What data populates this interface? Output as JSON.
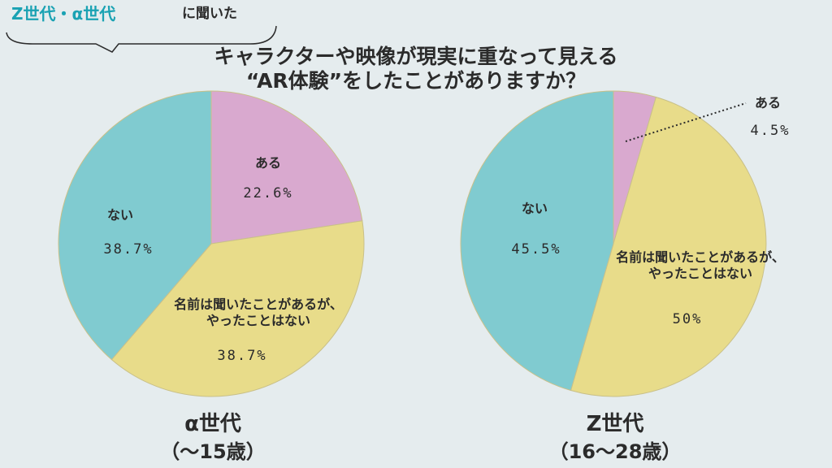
{
  "header": {
    "tag_colored": "Z世代・α世代",
    "tag_plain": "に聞いた",
    "title_line1": "キャラクターや映像が現実に重なって見える",
    "title_line2": "“AR体験”をしたことがありますか？"
  },
  "chart_data": [
    {
      "type": "pie",
      "name": "α世代",
      "subtitle": "（〜15歳）",
      "slices": [
        {
          "label": "ある",
          "value": 22.6,
          "value_text": "22.6%",
          "color": "#d9a9cf"
        },
        {
          "label": "名前は聞いたことがあるが、\nやったことはない",
          "value": 38.7,
          "value_text": "38.7%",
          "color": "#e8dc8a"
        },
        {
          "label": "ない",
          "value": 38.7,
          "value_text": "38.7%",
          "color": "#80cbd0"
        }
      ]
    },
    {
      "type": "pie",
      "name": "Z世代",
      "subtitle": "（16〜28歳）",
      "slices": [
        {
          "label": "ある",
          "value": 4.5,
          "value_text": "4.5%",
          "color": "#d9a9cf"
        },
        {
          "label": "名前は聞いたことがあるが、\nやったことはない",
          "value": 50,
          "value_text": "50%",
          "color": "#e8dc8a"
        },
        {
          "label": "ない",
          "value": 45.5,
          "value_text": "45.5%",
          "color": "#80cbd0"
        }
      ]
    }
  ],
  "colors": {
    "background": "#e5ecee",
    "accent": "#1aa2b3",
    "text": "#2b2b2b",
    "slice_stroke": "#c9c089"
  }
}
